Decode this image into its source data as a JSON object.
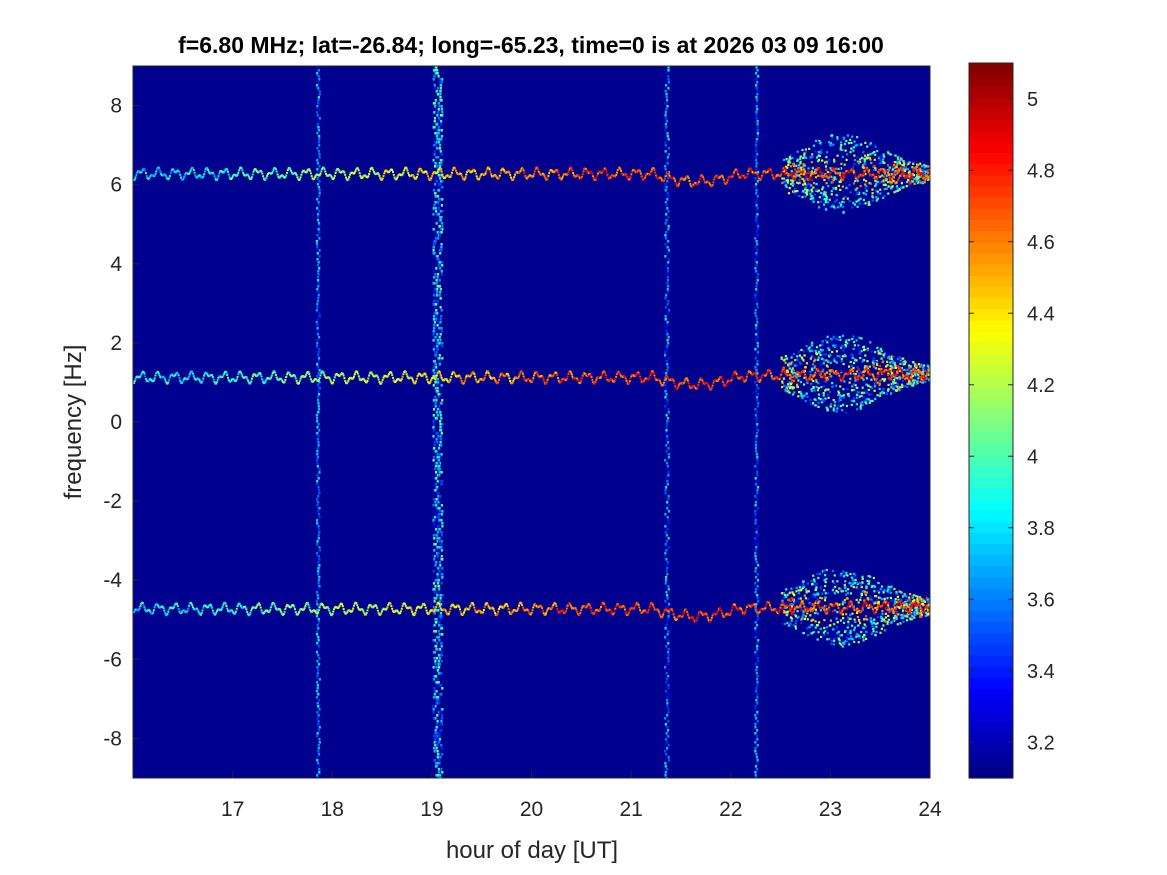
{
  "chart_data": {
    "type": "heatmap",
    "title": "f=6.80 MHz;  lat=-26.84; long=-65.23, time=0 is at 2026 03 09 16:00",
    "xlabel": "hour of day [UT]",
    "ylabel": "frequency [Hz]",
    "xlim": [
      16,
      24
    ],
    "ylim": [
      -9,
      9
    ],
    "x_ticks": [
      17,
      18,
      19,
      20,
      21,
      22,
      23,
      24
    ],
    "y_ticks": [
      -8,
      -6,
      -4,
      -2,
      0,
      2,
      4,
      6,
      8
    ],
    "colorbar": {
      "colormap": "jet",
      "range": [
        3.1,
        5.1
      ],
      "ticks": [
        3.2,
        3.4,
        3.6,
        3.8,
        4,
        4.2,
        4.4,
        4.6,
        4.8,
        5
      ]
    },
    "background_color": "#00008f",
    "traces": [
      {
        "base_frequency_hz": 6.3,
        "late_frequency_hz": 6.3
      },
      {
        "base_frequency_hz": 1.15,
        "late_frequency_hz": 1.25
      },
      {
        "base_frequency_hz": -4.7,
        "late_frequency_hz": -4.65
      }
    ],
    "broadband_bursts_hour": [
      17.85,
      19.05,
      21.35,
      22.25
    ],
    "strong_scatter_hours": [
      22.5,
      24
    ]
  }
}
